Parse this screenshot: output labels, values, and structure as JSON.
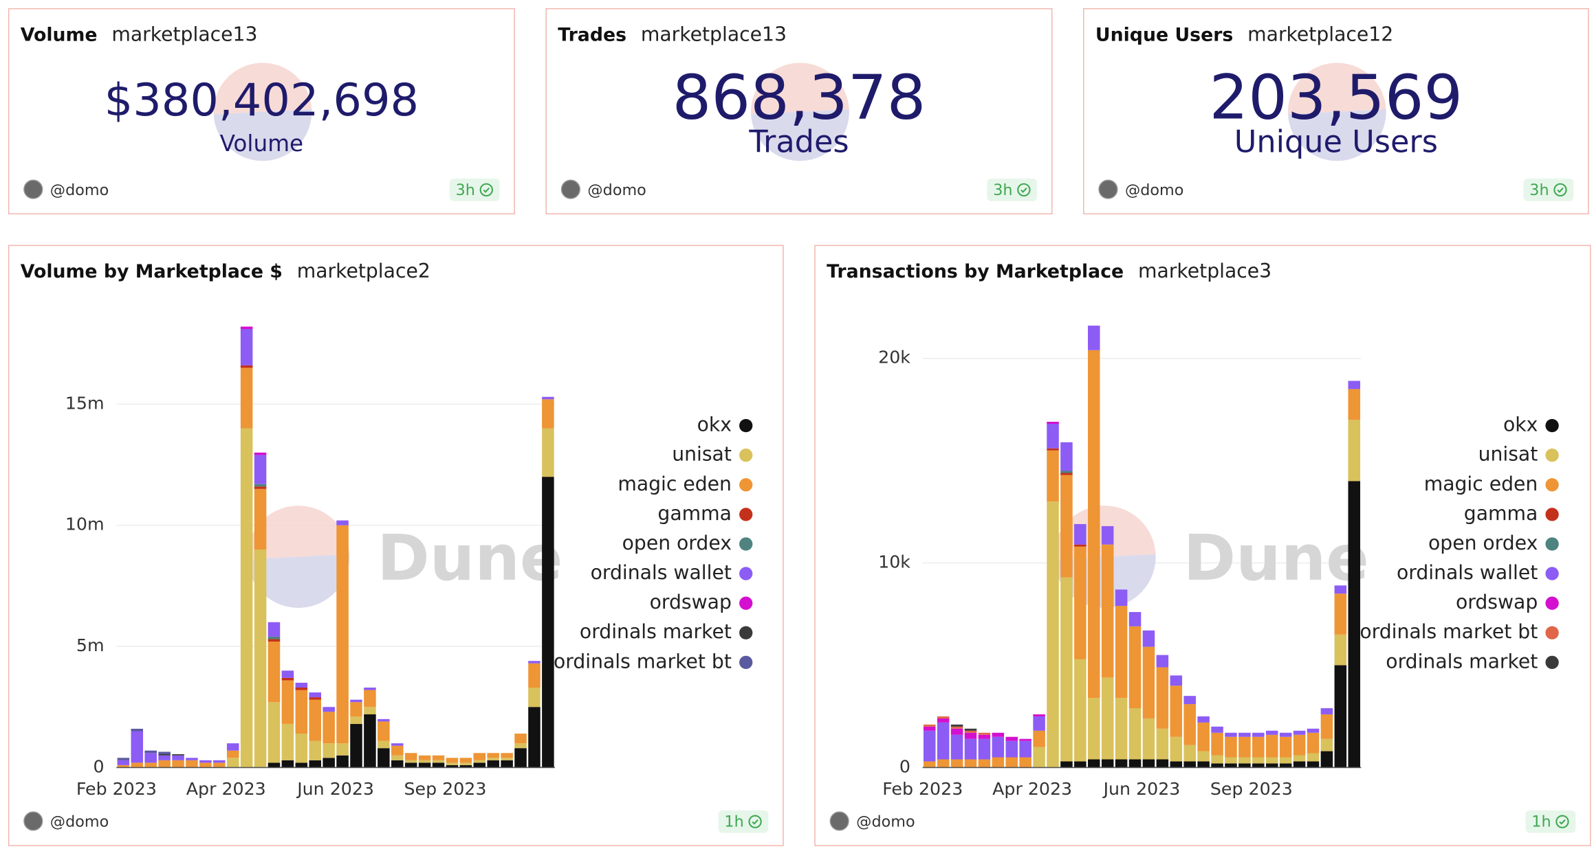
{
  "counters": [
    {
      "title": "Volume",
      "query": "marketplace13",
      "value": "$380,402,698",
      "label": "Volume",
      "author": "@domo",
      "age": "3h"
    },
    {
      "title": "Trades",
      "query": "marketplace13",
      "value": "868,378",
      "label": "Trades",
      "author": "@domo",
      "age": "3h"
    },
    {
      "title": "Unique Users",
      "query": "marketplace12",
      "value": "203,569",
      "label": "Unique Users",
      "author": "@domo",
      "age": "3h"
    }
  ],
  "chart_data": [
    {
      "type": "bar",
      "stacked": true,
      "title": "Volume by Marketplace $",
      "query": "marketplace2",
      "watermark": "Dune",
      "author": "@domo",
      "age": "1h",
      "categories": [
        "Feb 2023",
        null,
        null,
        null,
        null,
        null,
        null,
        null,
        "Apr 2023",
        null,
        null,
        null,
        null,
        null,
        null,
        null,
        "Jun 2023",
        null,
        null,
        null,
        null,
        null,
        null,
        null,
        "Sep 2023",
        null,
        null,
        null,
        null,
        null,
        null,
        null
      ],
      "ylim": [
        0,
        19
      ],
      "yticks": [
        0,
        {
          "value": 5,
          "label": "5m"
        },
        {
          "value": 10,
          "label": "10m"
        },
        {
          "value": 15,
          "label": "15m"
        }
      ],
      "grid": true,
      "legend": "right",
      "series": [
        {
          "name": "okx",
          "color": "#111111",
          "values": [
            0,
            0,
            0,
            0,
            0,
            0,
            0,
            0,
            0,
            0,
            0,
            0.2,
            0.3,
            0.2,
            0.3,
            0.4,
            0.5,
            1.8,
            2.2,
            0.8,
            0.3,
            0.2,
            0.2,
            0.2,
            0.1,
            0.1,
            0.2,
            0.3,
            0.3,
            0.8,
            2.5,
            12
          ]
        },
        {
          "name": "unisat",
          "color": "#d9c15c",
          "values": [
            0,
            0,
            0,
            0,
            0,
            0,
            0,
            0,
            0.4,
            14,
            9,
            2.5,
            1.5,
            1.2,
            0.8,
            0.6,
            0.5,
            0.3,
            0.3,
            0.3,
            0.2,
            0.1,
            0.1,
            0.1,
            0.1,
            0.1,
            0.1,
            0.1,
            0.1,
            0.2,
            0.8,
            2
          ]
        },
        {
          "name": "magic eden",
          "color": "#ee9535",
          "values": [
            0.1,
            0.2,
            0.2,
            0.3,
            0.3,
            0.3,
            0.2,
            0.2,
            0.3,
            2.5,
            2.5,
            2.5,
            1.8,
            1.8,
            1.7,
            1.3,
            9,
            0.6,
            0.7,
            0.8,
            0.4,
            0.3,
            0.2,
            0.2,
            0.2,
            0.2,
            0.3,
            0.2,
            0.2,
            0.4,
            1,
            1.2
          ]
        },
        {
          "name": "gamma",
          "color": "#c4311b",
          "values": [
            0,
            0,
            0,
            0,
            0,
            0,
            0,
            0,
            0,
            0.1,
            0.1,
            0.1,
            0.1,
            0.1,
            0.1,
            0,
            0,
            0,
            0,
            0,
            0,
            0,
            0,
            0,
            0,
            0,
            0,
            0,
            0,
            0,
            0,
            0
          ]
        },
        {
          "name": "open ordex",
          "color": "#4e8380",
          "values": [
            0,
            0,
            0,
            0,
            0,
            0,
            0,
            0,
            0,
            0,
            0.1,
            0.1,
            0,
            0,
            0,
            0,
            0,
            0,
            0,
            0,
            0,
            0,
            0,
            0,
            0,
            0,
            0,
            0,
            0,
            0,
            0,
            0
          ]
        },
        {
          "name": "ordinals wallet",
          "color": "#8c5cf5",
          "values": [
            0.2,
            1.3,
            0.4,
            0.2,
            0.2,
            0.1,
            0.1,
            0.1,
            0.3,
            1.5,
            1.2,
            0.6,
            0.3,
            0.2,
            0.2,
            0.2,
            0.2,
            0.1,
            0.1,
            0.1,
            0.1,
            0,
            0,
            0,
            0,
            0,
            0,
            0,
            0,
            0,
            0.1,
            0.1
          ]
        },
        {
          "name": "ordswap",
          "color": "#d40fcf",
          "values": [
            0,
            0,
            0,
            0,
            0,
            0,
            0,
            0,
            0,
            0.1,
            0.1,
            0,
            0,
            0,
            0,
            0,
            0,
            0,
            0,
            0,
            0,
            0,
            0,
            0,
            0,
            0,
            0,
            0,
            0,
            0,
            0,
            0
          ]
        },
        {
          "name": "ordinals market",
          "color": "#3a3a3a",
          "values": [
            0,
            0,
            0,
            0.05,
            0.05,
            0,
            0,
            0,
            0,
            0,
            0,
            0,
            0,
            0,
            0,
            0,
            0,
            0,
            0,
            0,
            0,
            0,
            0,
            0,
            0,
            0,
            0,
            0,
            0,
            0,
            0,
            0
          ]
        },
        {
          "name": "ordinals market bt",
          "color": "#5a5aa0",
          "values": [
            0.1,
            0.1,
            0.1,
            0.1,
            0,
            0,
            0,
            0,
            0,
            0,
            0,
            0,
            0,
            0,
            0,
            0,
            0,
            0,
            0,
            0,
            0,
            0,
            0,
            0,
            0,
            0,
            0,
            0,
            0,
            0,
            0,
            0
          ]
        }
      ]
    },
    {
      "type": "bar",
      "stacked": true,
      "title": "Transactions by Marketplace",
      "query": "marketplace3",
      "watermark": "Dune",
      "author": "@domo",
      "age": "1h",
      "categories": [
        "Feb 2023",
        null,
        null,
        null,
        null,
        null,
        null,
        null,
        "Apr 2023",
        null,
        null,
        null,
        null,
        null,
        null,
        null,
        "Jun 2023",
        null,
        null,
        null,
        null,
        null,
        null,
        null,
        "Sep 2023",
        null,
        null,
        null,
        null,
        null,
        null,
        null
      ],
      "ylim": [
        0,
        22.5
      ],
      "yticks": [
        0,
        {
          "value": 10,
          "label": "10k"
        },
        {
          "value": 20,
          "label": "20k"
        }
      ],
      "grid": true,
      "legend": "right",
      "series": [
        {
          "name": "okx",
          "color": "#111111",
          "values": [
            0,
            0,
            0,
            0,
            0,
            0,
            0,
            0,
            0,
            0,
            0.3,
            0.3,
            0.4,
            0.4,
            0.4,
            0.4,
            0.4,
            0.4,
            0.3,
            0.3,
            0.3,
            0.2,
            0.2,
            0.2,
            0.2,
            0.2,
            0.2,
            0.3,
            0.3,
            0.8,
            5,
            14
          ]
        },
        {
          "name": "unisat",
          "color": "#d9c15c",
          "values": [
            0,
            0,
            0,
            0,
            0,
            0,
            0,
            0,
            1,
            13,
            9,
            5,
            3,
            4,
            3,
            2.5,
            2,
            1.5,
            1.2,
            0.8,
            0.5,
            0.4,
            0.3,
            0.3,
            0.3,
            0.3,
            0.3,
            0.3,
            0.4,
            0.6,
            1.5,
            3
          ]
        },
        {
          "name": "magic eden",
          "color": "#ee9535",
          "values": [
            0.3,
            0.4,
            0.4,
            0.4,
            0.4,
            0.5,
            0.5,
            0.5,
            0.8,
            2.5,
            5,
            5.5,
            17,
            6.5,
            4.5,
            4,
            3.5,
            3,
            2.5,
            2,
            1.4,
            1.1,
            1,
            1,
            1,
            1.1,
            1,
            1,
            1,
            1.2,
            2,
            1.5
          ]
        },
        {
          "name": "gamma",
          "color": "#c4311b",
          "values": [
            0,
            0,
            0,
            0,
            0,
            0,
            0,
            0,
            0,
            0.1,
            0.1,
            0.1,
            0,
            0,
            0,
            0,
            0,
            0,
            0,
            0,
            0,
            0,
            0,
            0,
            0,
            0,
            0,
            0,
            0,
            0,
            0,
            0
          ]
        },
        {
          "name": "open ordex",
          "color": "#4e8380",
          "values": [
            0,
            0,
            0,
            0,
            0,
            0,
            0,
            0,
            0,
            0,
            0.1,
            0,
            0,
            0,
            0,
            0,
            0,
            0,
            0,
            0,
            0,
            0,
            0,
            0,
            0,
            0,
            0,
            0,
            0,
            0,
            0,
            0
          ]
        },
        {
          "name": "ordinals wallet",
          "color": "#8c5cf5",
          "values": [
            1.5,
            1.8,
            1.2,
            1,
            1,
            1,
            0.8,
            0.8,
            0.7,
            1.2,
            1.4,
            1,
            1.2,
            0.9,
            0.8,
            0.7,
            0.8,
            0.6,
            0.5,
            0.4,
            0.3,
            0.3,
            0.2,
            0.2,
            0.2,
            0.2,
            0.2,
            0.2,
            0.2,
            0.3,
            0.4,
            0.4
          ]
        },
        {
          "name": "ordswap",
          "color": "#d40fcf",
          "values": [
            0.2,
            0.2,
            0.3,
            0.3,
            0.2,
            0.2,
            0.2,
            0.1,
            0.1,
            0.1,
            0,
            0,
            0,
            0,
            0,
            0,
            0,
            0,
            0,
            0,
            0,
            0,
            0,
            0,
            0,
            0,
            0,
            0,
            0,
            0,
            0,
            0
          ]
        },
        {
          "name": "ordinals market bt",
          "color": "#e0664a",
          "values": [
            0.1,
            0.1,
            0.1,
            0.1,
            0.1,
            0,
            0,
            0,
            0,
            0,
            0,
            0,
            0,
            0,
            0,
            0,
            0,
            0,
            0,
            0,
            0,
            0,
            0,
            0,
            0,
            0,
            0,
            0,
            0,
            0,
            0,
            0
          ]
        },
        {
          "name": "ordinals market",
          "color": "#3a3a3a",
          "values": [
            0,
            0,
            0.1,
            0.1,
            0,
            0,
            0,
            0,
            0,
            0,
            0,
            0,
            0,
            0,
            0,
            0,
            0,
            0,
            0,
            0,
            0,
            0,
            0,
            0,
            0,
            0,
            0,
            0,
            0,
            0,
            0,
            0
          ]
        }
      ]
    }
  ]
}
